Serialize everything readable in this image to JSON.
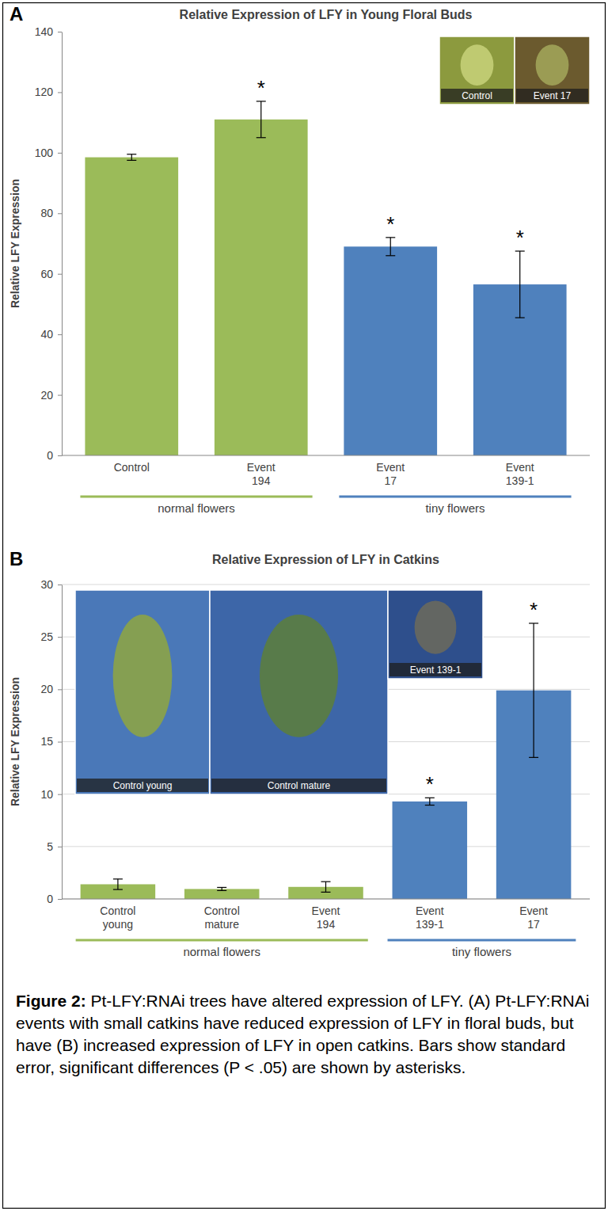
{
  "chart_data": [
    {
      "type": "bar",
      "panel": "A",
      "title": "Relative Expression of LFY in Young Floral Buds",
      "y_label": "Relative LFY Expression",
      "categories": [
        "Control",
        "Event 194",
        "Event 17",
        "Event 139-1"
      ],
      "values": [
        98.5,
        111,
        69,
        56.5
      ],
      "errors": [
        1,
        6,
        3,
        11
      ],
      "colors": [
        "#9bbb59",
        "#9bbb59",
        "#4f81bd",
        "#4f81bd"
      ],
      "significance": [
        null,
        "*",
        "*",
        "*"
      ],
      "groups": [
        {
          "label": "normal flowers",
          "color": "#9bbb59",
          "categories": [
            "Control",
            "Event 194"
          ]
        },
        {
          "label": "tiny flowers",
          "color": "#4f81bd",
          "categories": [
            "Event 17",
            "Event 139-1"
          ]
        }
      ],
      "insets": [
        "Control",
        "Event 17"
      ],
      "ylim": [
        0,
        140
      ],
      "yticks": [
        0,
        20,
        40,
        60,
        80,
        100,
        120,
        140
      ],
      "grid": false
    },
    {
      "type": "bar",
      "panel": "B",
      "title": "Relative Expression of LFY in Catkins",
      "y_label": "Relative LFY Expression",
      "categories": [
        "Control young",
        "Control mature",
        "Event 194",
        "Event 139-1",
        "Event 17"
      ],
      "values": [
        1.4,
        0.95,
        1.15,
        9.3,
        19.9
      ],
      "errors": [
        0.5,
        0.15,
        0.5,
        0.35,
        6.4
      ],
      "colors": [
        "#9bbb59",
        "#9bbb59",
        "#9bbb59",
        "#4f81bd",
        "#4f81bd"
      ],
      "significance": [
        null,
        null,
        null,
        "*",
        "*"
      ],
      "groups": [
        {
          "label": "normal flowers",
          "color": "#9bbb59",
          "categories": [
            "Control young",
            "Control mature",
            "Event 194"
          ]
        },
        {
          "label": "tiny flowers",
          "color": "#4f81bd",
          "categories": [
            "Event 139-1",
            "Event 17"
          ]
        }
      ],
      "insets": [
        "Control young",
        "Control mature",
        "Event 139-1"
      ],
      "ylim": [
        0,
        30
      ],
      "yticks": [
        0,
        5,
        10,
        15,
        20,
        25,
        30
      ],
      "grid": true
    }
  ],
  "caption": {
    "label": "Figure 2:",
    "text": "Pt-LFY:RNAi trees have altered expression of LFY. (A) Pt-LFY:RNAi events with small catkins have reduced expression of LFY in floral buds, but have (B) increased expression of LFY in open catkins. Bars show standard error, significant differences (P < .05) are shown by asterisks."
  }
}
